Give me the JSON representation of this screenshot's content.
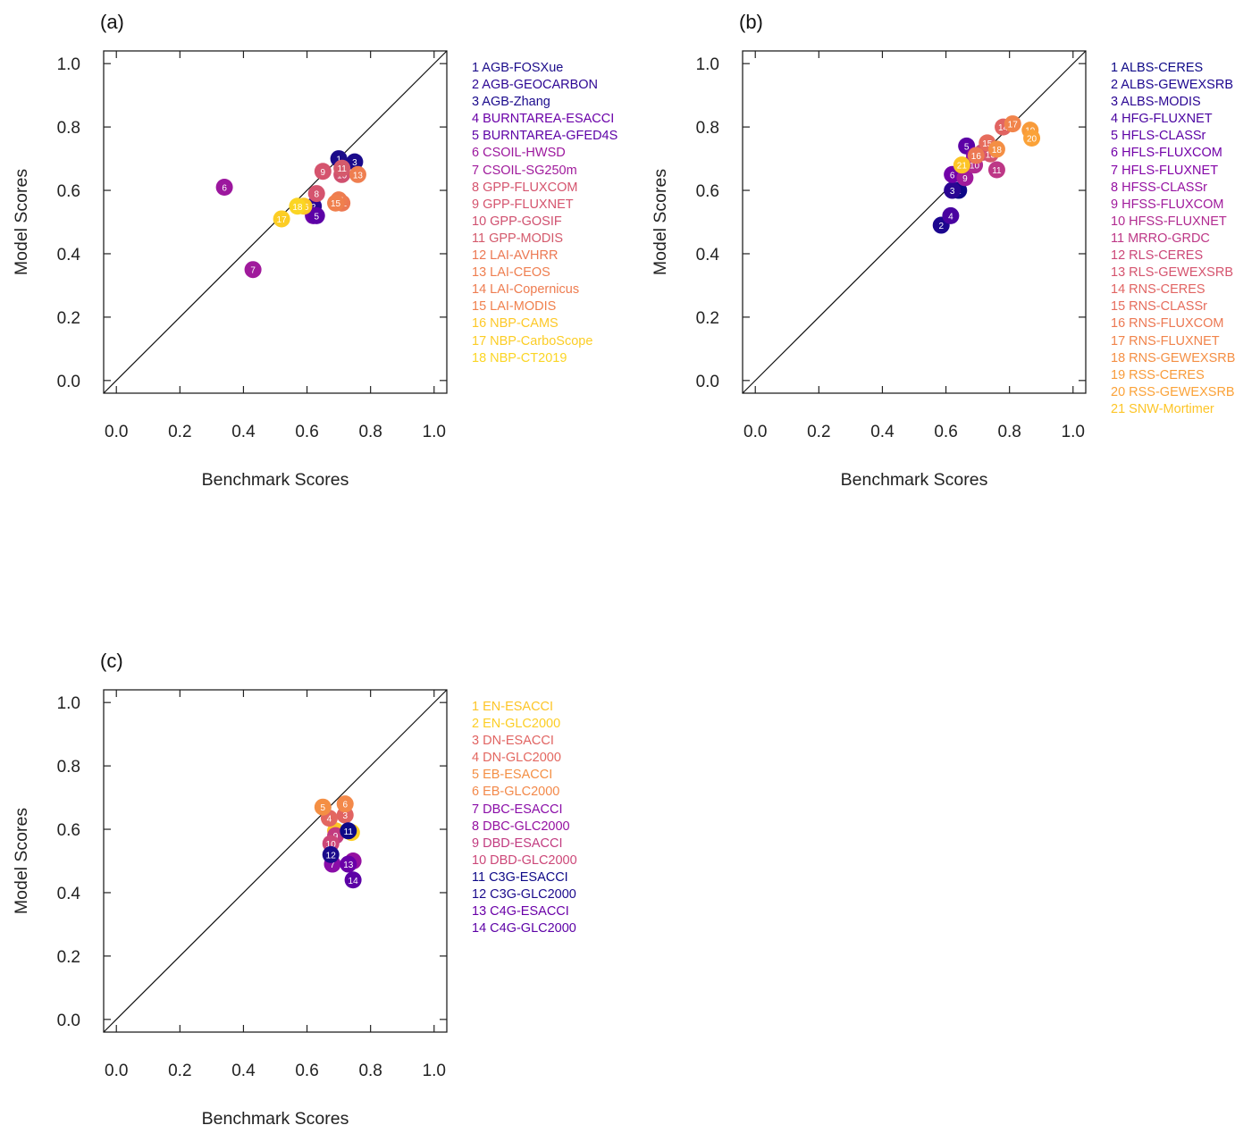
{
  "chart_data": [
    {
      "type": "scatter",
      "panel_label": "(a)",
      "title": "",
      "xlabel": "Benchmark Scores",
      "ylabel": "Model Scores",
      "xlim": [
        -0.04,
        1.04
      ],
      "ylim": [
        -0.04,
        1.04
      ],
      "xticks": [
        "0.0",
        "0.2",
        "0.4",
        "0.6",
        "0.8",
        "1.0"
      ],
      "yticks": [
        "0.0",
        "0.2",
        "0.4",
        "0.6",
        "0.8",
        "1.0"
      ],
      "reference_line": "y = x",
      "legend_position": "right",
      "points": [
        {
          "id": 1,
          "label": "AGB-FOSXue",
          "x": 0.7,
          "y": 0.7,
          "color": "#1b0c8a"
        },
        {
          "id": 2,
          "label": "AGB-GEOCARBON",
          "x": 0.62,
          "y": 0.55,
          "color": "#2c0594"
        },
        {
          "id": 3,
          "label": "AGB-Zhang",
          "x": 0.75,
          "y": 0.69,
          "color": "#1a0a8c"
        },
        {
          "id": 4,
          "label": "BURNTAREA-ESACCI",
          "x": 0.62,
          "y": 0.52,
          "color": "#6a00a8"
        },
        {
          "id": 5,
          "label": "BURNTAREA-GFED4S",
          "x": 0.63,
          "y": 0.52,
          "color": "#5c01a6"
        },
        {
          "id": 6,
          "label": "CSOIL-HWSD",
          "x": 0.34,
          "y": 0.61,
          "color": "#9c179e"
        },
        {
          "id": 7,
          "label": "CSOIL-SG250m",
          "x": 0.43,
          "y": 0.35,
          "color": "#a01a9c"
        },
        {
          "id": 8,
          "label": "GPP-FLUXCOM",
          "x": 0.63,
          "y": 0.59,
          "color": "#d5546e"
        },
        {
          "id": 9,
          "label": "GPP-FLUXNET",
          "x": 0.65,
          "y": 0.66,
          "color": "#d5546e"
        },
        {
          "id": 10,
          "label": "GPP-GOSIF",
          "x": 0.71,
          "y": 0.65,
          "color": "#d0506f"
        },
        {
          "id": 11,
          "label": "GPP-MODIS",
          "x": 0.71,
          "y": 0.67,
          "color": "#d45a6c"
        },
        {
          "id": 12,
          "label": "LAI-AVHRR",
          "x": 0.71,
          "y": 0.56,
          "color": "#ec7853"
        },
        {
          "id": 13,
          "label": "LAI-CEOS",
          "x": 0.76,
          "y": 0.65,
          "color": "#ef7e4f"
        },
        {
          "id": 14,
          "label": "LAI-Copernicus",
          "x": 0.7,
          "y": 0.57,
          "color": "#ee7c50"
        },
        {
          "id": 15,
          "label": "LAI-MODIS",
          "x": 0.69,
          "y": 0.56,
          "color": "#f0804d"
        },
        {
          "id": 16,
          "label": "NBP-CAMS",
          "x": 0.59,
          "y": 0.55,
          "color": "#fdc827"
        },
        {
          "id": 17,
          "label": "NBP-CarboScope",
          "x": 0.52,
          "y": 0.51,
          "color": "#fccd25"
        },
        {
          "id": 18,
          "label": "NBP-CT2019",
          "x": 0.57,
          "y": 0.55,
          "color": "#fbd524"
        }
      ]
    },
    {
      "type": "scatter",
      "panel_label": "(b)",
      "title": "",
      "xlabel": "Benchmark Scores",
      "ylabel": "Model Scores",
      "xlim": [
        -0.04,
        1.04
      ],
      "ylim": [
        -0.04,
        1.04
      ],
      "xticks": [
        "0.0",
        "0.2",
        "0.4",
        "0.6",
        "0.8",
        "1.0"
      ],
      "yticks": [
        "0.0",
        "0.2",
        "0.4",
        "0.6",
        "0.8",
        "1.0"
      ],
      "reference_line": "y = x",
      "legend_position": "right",
      "points": [
        {
          "id": 1,
          "label": "ALBS-CERES",
          "x": 0.64,
          "y": 0.6,
          "color": "#0d0887"
        },
        {
          "id": 2,
          "label": "ALBS-GEWEXSRB",
          "x": 0.585,
          "y": 0.49,
          "color": "#1c068f"
        },
        {
          "id": 3,
          "label": "ALBS-MODIS",
          "x": 0.62,
          "y": 0.6,
          "color": "#2a0593"
        },
        {
          "id": 4,
          "label": "HFG-FLUXNET",
          "x": 0.615,
          "y": 0.52,
          "color": "#4903a0"
        },
        {
          "id": 5,
          "label": "HFLS-CLASSr",
          "x": 0.665,
          "y": 0.74,
          "color": "#5c01a6"
        },
        {
          "id": 6,
          "label": "HFLS-FLUXCOM",
          "x": 0.62,
          "y": 0.65,
          "color": "#7201a8"
        },
        {
          "id": 7,
          "label": "HFLS-FLUXNET",
          "x": 0.69,
          "y": 0.71,
          "color": "#8405a7"
        },
        {
          "id": 8,
          "label": "HFSS-CLASSr",
          "x": 0.685,
          "y": 0.69,
          "color": "#9511a1"
        },
        {
          "id": 9,
          "label": "HFSS-FLUXCOM",
          "x": 0.66,
          "y": 0.64,
          "color": "#a01a9c"
        },
        {
          "id": 10,
          "label": "HFSS-FLUXNET",
          "x": 0.69,
          "y": 0.68,
          "color": "#b12a90"
        },
        {
          "id": 11,
          "label": "MRRO-GRDC",
          "x": 0.76,
          "y": 0.665,
          "color": "#bd3786"
        },
        {
          "id": 12,
          "label": "RLS-CERES",
          "x": 0.715,
          "y": 0.72,
          "color": "#cc4778"
        },
        {
          "id": 13,
          "label": "RLS-GEWEXSRB",
          "x": 0.74,
          "y": 0.715,
          "color": "#d5546e"
        },
        {
          "id": 14,
          "label": "RNS-CERES",
          "x": 0.78,
          "y": 0.8,
          "color": "#e16462"
        },
        {
          "id": 15,
          "label": "RNS-CLASSr",
          "x": 0.73,
          "y": 0.75,
          "color": "#e66c5c"
        },
        {
          "id": 16,
          "label": "RNS-FLUXCOM",
          "x": 0.695,
          "y": 0.71,
          "color": "#ec7853"
        },
        {
          "id": 17,
          "label": "RNS-FLUXNET",
          "x": 0.81,
          "y": 0.81,
          "color": "#f1844b"
        },
        {
          "id": 18,
          "label": "RNS-GEWEXSRB",
          "x": 0.76,
          "y": 0.73,
          "color": "#f48f44"
        },
        {
          "id": 19,
          "label": "RSS-CERES",
          "x": 0.865,
          "y": 0.79,
          "color": "#f89b3a"
        },
        {
          "id": 20,
          "label": "RSS-GEWEXSRB",
          "x": 0.87,
          "y": 0.765,
          "color": "#fba238"
        },
        {
          "id": 21,
          "label": "SNW-Mortimer",
          "x": 0.65,
          "y": 0.68,
          "color": "#fdc527"
        }
      ]
    },
    {
      "type": "scatter",
      "panel_label": "(c)",
      "title": "",
      "xlabel": "Benchmark Scores",
      "ylabel": "Model Scores",
      "xlim": [
        -0.04,
        1.04
      ],
      "ylim": [
        -0.04,
        1.04
      ],
      "xticks": [
        "0.0",
        "0.2",
        "0.4",
        "0.6",
        "0.8",
        "1.0"
      ],
      "yticks": [
        "0.0",
        "0.2",
        "0.4",
        "0.6",
        "0.8",
        "1.0"
      ],
      "reference_line": "y = x",
      "legend_position": "right",
      "points": [
        {
          "id": 1,
          "label": "EN-ESACCI",
          "x": 0.69,
          "y": 0.595,
          "color": "#fdc527"
        },
        {
          "id": 2,
          "label": "EN-GLC2000",
          "x": 0.74,
          "y": 0.59,
          "color": "#fcce25"
        },
        {
          "id": 3,
          "label": "DN-ESACCI",
          "x": 0.72,
          "y": 0.645,
          "color": "#e16462"
        },
        {
          "id": 4,
          "label": "DN-GLC2000",
          "x": 0.67,
          "y": 0.635,
          "color": "#e36760"
        },
        {
          "id": 5,
          "label": "EB-ESACCI",
          "x": 0.65,
          "y": 0.67,
          "color": "#f48f44"
        },
        {
          "id": 6,
          "label": "EB-GLC2000",
          "x": 0.72,
          "y": 0.68,
          "color": "#f3894a"
        },
        {
          "id": 7,
          "label": "DBC-ESACCI",
          "x": 0.68,
          "y": 0.49,
          "color": "#8a0da8"
        },
        {
          "id": 8,
          "label": "DBC-GLC2000",
          "x": 0.745,
          "y": 0.5,
          "color": "#9511a1"
        },
        {
          "id": 9,
          "label": "DBD-ESACCI",
          "x": 0.69,
          "y": 0.58,
          "color": "#c23b80"
        },
        {
          "id": 10,
          "label": "DBD-GLC2000",
          "x": 0.675,
          "y": 0.555,
          "color": "#cc4778"
        },
        {
          "id": 11,
          "label": "C3G-ESACCI",
          "x": 0.73,
          "y": 0.595,
          "color": "#0d0887"
        },
        {
          "id": 12,
          "label": "C3G-GLC2000",
          "x": 0.675,
          "y": 0.52,
          "color": "#1a0a8c"
        },
        {
          "id": 13,
          "label": "C4G-ESACCI",
          "x": 0.73,
          "y": 0.49,
          "color": "#6a00a8"
        },
        {
          "id": 14,
          "label": "C4G-GLC2000",
          "x": 0.745,
          "y": 0.44,
          "color": "#5c01a6"
        }
      ]
    }
  ]
}
